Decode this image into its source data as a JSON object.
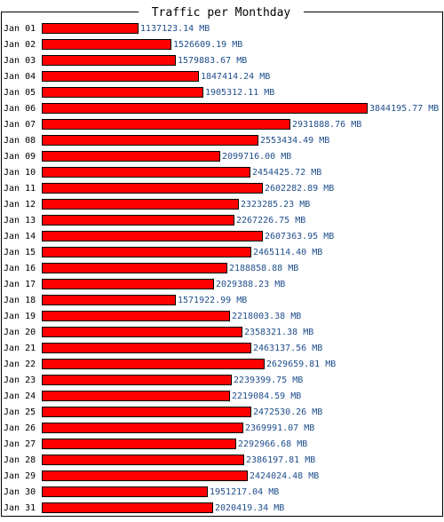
{
  "chart_data": {
    "type": "bar",
    "orientation": "horizontal",
    "title": "Traffic per Monthday",
    "unit": "MB",
    "colors": {
      "bar": "#ff0000",
      "bar_outline": "#000000",
      "frame": "#000000",
      "value_text": "#1f4e8c"
    },
    "categories": [
      "Jan 01",
      "Jan 02",
      "Jan 03",
      "Jan 04",
      "Jan 05",
      "Jan 06",
      "Jan 07",
      "Jan 08",
      "Jan 09",
      "Jan 10",
      "Jan 11",
      "Jan 12",
      "Jan 13",
      "Jan 14",
      "Jan 15",
      "Jan 16",
      "Jan 17",
      "Jan 18",
      "Jan 19",
      "Jan 20",
      "Jan 21",
      "Jan 22",
      "Jan 23",
      "Jan 24",
      "Jan 25",
      "Jan 26",
      "Jan 27",
      "Jan 28",
      "Jan 29",
      "Jan 30",
      "Jan 31"
    ],
    "values": [
      1137123.14,
      1526609.19,
      1579883.67,
      1847414.24,
      1905312.11,
      3844195.77,
      2931888.76,
      2553434.49,
      2099716.0,
      2454425.72,
      2602282.89,
      2323285.23,
      2267226.75,
      2607363.95,
      2465114.4,
      2188858.88,
      2029388.23,
      1571922.99,
      2218003.38,
      2358321.38,
      2463137.56,
      2629659.81,
      2239399.75,
      2219084.59,
      2472530.26,
      2369991.07,
      2292966.68,
      2386197.81,
      2424024.48,
      1951217.04,
      2020419.34
    ],
    "value_labels": [
      "1137123.14 MB",
      "1526609.19 MB",
      "1579883.67 MB",
      "1847414.24 MB",
      "1905312.11 MB",
      "3844195.77 MB",
      "2931888.76 MB",
      "2553434.49 MB",
      "2099716.00 MB",
      "2454425.72 MB",
      "2602282.89 MB",
      "2323285.23 MB",
      "2267226.75 MB",
      "2607363.95 MB",
      "2465114.40 MB",
      "2188858.88 MB",
      "2029388.23 MB",
      "1571922.99 MB",
      "2218003.38 MB",
      "2358321.38 MB",
      "2463137.56 MB",
      "2629659.81 MB",
      "2239399.75 MB",
      "2219084.59 MB",
      "2472530.26 MB",
      "2369991.07 MB",
      "2292966.68 MB",
      "2386197.81 MB",
      "2424024.48 MB",
      "1951217.04 MB",
      "2020419.34 MB"
    ]
  }
}
